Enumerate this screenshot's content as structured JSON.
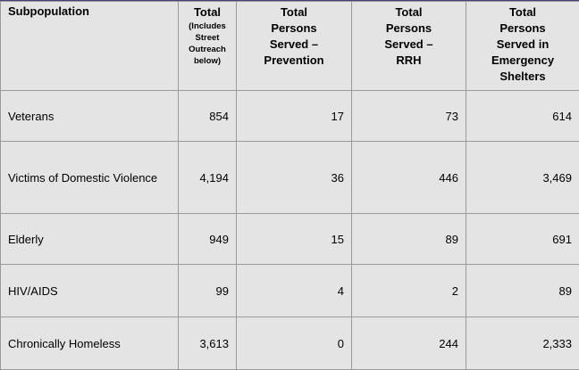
{
  "table": {
    "headers": [
      {
        "lines": [
          "Subpopulation"
        ],
        "sub": []
      },
      {
        "lines": [
          "Total"
        ],
        "sub": [
          "(Includes",
          "Street",
          "Outreach",
          "below)"
        ]
      },
      {
        "lines": [
          "Total",
          "Persons",
          "Served –",
          "Prevention"
        ],
        "sub": []
      },
      {
        "lines": [
          "Total",
          "Persons",
          "Served –",
          "RRH"
        ],
        "sub": []
      },
      {
        "lines": [
          "Total",
          "Persons",
          "Served in",
          "Emergency",
          "Shelters"
        ],
        "sub": []
      }
    ],
    "rows": [
      {
        "name": [
          "Veterans"
        ],
        "total": "854",
        "prevention": "17",
        "rrh": "73",
        "shelters": "614"
      },
      {
        "name": [
          "Victims of Domestic",
          "Violence"
        ],
        "total": "4,194",
        "prevention": "36",
        "rrh": "446",
        "shelters": "3,469"
      },
      {
        "name": [
          "Elderly"
        ],
        "total": "949",
        "prevention": "15",
        "rrh": "89",
        "shelters": "691"
      },
      {
        "name": [
          "HIV/AIDS"
        ],
        "total": "99",
        "prevention": "4",
        "rrh": "2",
        "shelters": "89"
      },
      {
        "name": [
          "Chronically Homeless"
        ],
        "total": "3,613",
        "prevention": "0",
        "rrh": "244",
        "shelters": "2,333"
      }
    ]
  }
}
